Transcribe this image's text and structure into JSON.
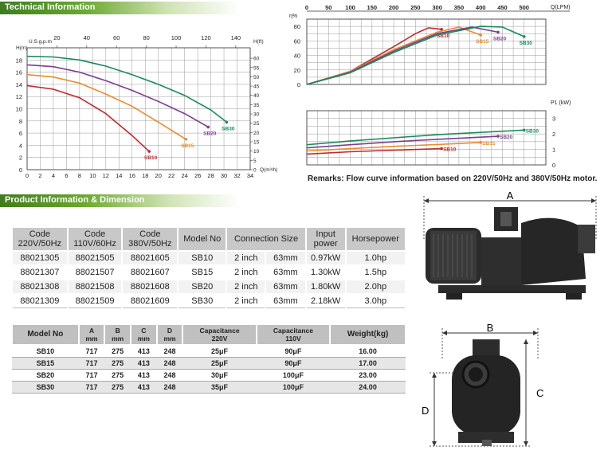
{
  "banners": {
    "technical": "Technical Information",
    "product": "Product Information & Dimension"
  },
  "remarks": "Remarks: Flow curve information based on 220V/50Hz and 380V/50Hz motor.",
  "chart_data": [
    {
      "type": "line",
      "title": "",
      "xlabel": "Q(m³/h)",
      "ylabel": "H(m)",
      "secondary_ylabel": "H(ft)",
      "secondary_xlabel": "U.S.g.p.m",
      "xlim": [
        0,
        34
      ],
      "ylim": [
        0,
        20
      ],
      "x_ticks": [
        "0",
        "2",
        "4",
        "6",
        "8",
        "10",
        "12",
        "14",
        "16",
        "18",
        "20",
        "22",
        "24",
        "26",
        "28",
        "30",
        "32",
        "34"
      ],
      "y_ticks": [
        "0",
        "2",
        "4",
        "6",
        "8",
        "10",
        "12",
        "14",
        "16",
        "18"
      ],
      "secondary_x_ticks": [
        "20",
        "40",
        "60",
        "80",
        "100",
        "120",
        "140"
      ],
      "secondary_y_ticks": [
        "0",
        "5",
        "10",
        "15",
        "20",
        "25",
        "30",
        "35",
        "40",
        "45",
        "50",
        "55",
        "60"
      ],
      "grid": true,
      "series": [
        {
          "name": "SB10",
          "color": "#c0282d",
          "points": [
            [
              0,
              13.8
            ],
            [
              4,
              13.2
            ],
            [
              8,
              11.8
            ],
            [
              12,
              9.2
            ],
            [
              16,
              5.6
            ],
            [
              18.6,
              3.0
            ]
          ]
        },
        {
          "name": "SB15",
          "color": "#e88c2c",
          "points": [
            [
              0,
              15.6
            ],
            [
              4,
              15.2
            ],
            [
              8,
              14.2
            ],
            [
              12,
              12.4
            ],
            [
              16,
              10.4
            ],
            [
              20,
              7.8
            ],
            [
              24.2,
              5.0
            ]
          ]
        },
        {
          "name": "SB20",
          "color": "#7a3f8f",
          "points": [
            [
              0,
              17.2
            ],
            [
              4,
              16.9
            ],
            [
              8,
              16.0
            ],
            [
              12,
              14.6
            ],
            [
              16,
              13.0
            ],
            [
              20,
              11.2
            ],
            [
              24,
              9.2
            ],
            [
              27.6,
              7.0
            ]
          ]
        },
        {
          "name": "SB30",
          "color": "#1a8a5a",
          "points": [
            [
              0,
              18.6
            ],
            [
              4,
              18.5
            ],
            [
              8,
              18.0
            ],
            [
              12,
              17.0
            ],
            [
              16,
              15.6
            ],
            [
              20,
              14.0
            ],
            [
              24,
              12.2
            ],
            [
              28,
              9.8
            ],
            [
              30.4,
              7.8
            ]
          ]
        }
      ]
    },
    {
      "type": "line",
      "title": "",
      "xlabel": "Q(LPM)",
      "ylabel": "η%",
      "xlim": [
        0,
        550
      ],
      "ylim": [
        0,
        90
      ],
      "x_ticks": [
        "0",
        "50",
        "100",
        "150",
        "200",
        "250",
        "300",
        "350",
        "400",
        "450",
        "500"
      ],
      "y_ticks": [
        "0",
        "20",
        "40",
        "60",
        "80"
      ],
      "grid": true,
      "series": [
        {
          "name": "SB10",
          "color": "#c0282d",
          "points": [
            [
              0,
              0
            ],
            [
              100,
              18
            ],
            [
              200,
              52
            ],
            [
              250,
              70
            ],
            [
              280,
              78
            ],
            [
              310,
              76
            ]
          ]
        },
        {
          "name": "SB15",
          "color": "#e88c2c",
          "points": [
            [
              0,
              0
            ],
            [
              100,
              18
            ],
            [
              200,
              48
            ],
            [
              300,
              72
            ],
            [
              350,
              79
            ],
            [
              400,
              68
            ]
          ]
        },
        {
          "name": "SB20",
          "color": "#7a3f8f",
          "points": [
            [
              0,
              0
            ],
            [
              100,
              17
            ],
            [
              200,
              46
            ],
            [
              300,
              70
            ],
            [
              380,
              79
            ],
            [
              440,
              72
            ]
          ]
        },
        {
          "name": "SB30",
          "color": "#1a8a5a",
          "points": [
            [
              0,
              0
            ],
            [
              100,
              16
            ],
            [
              200,
              44
            ],
            [
              300,
              68
            ],
            [
              400,
              80
            ],
            [
              450,
              79
            ],
            [
              500,
              66
            ]
          ]
        }
      ]
    },
    {
      "type": "line",
      "title": "",
      "xlabel": "",
      "ylabel": "P1 (kW)",
      "xlim": [
        0,
        550
      ],
      "ylim": [
        0,
        3.5
      ],
      "y_ticks": [
        "0",
        "1",
        "2",
        "3"
      ],
      "grid": true,
      "series": [
        {
          "name": "SB10",
          "color": "#c0282d",
          "points": [
            [
              0,
              0.7
            ],
            [
              100,
              0.85
            ],
            [
              200,
              0.95
            ],
            [
              310,
              1.05
            ]
          ]
        },
        {
          "name": "SB15",
          "color": "#e88c2c",
          "points": [
            [
              0,
              0.9
            ],
            [
              100,
              1.05
            ],
            [
              200,
              1.2
            ],
            [
              300,
              1.32
            ],
            [
              400,
              1.45
            ]
          ]
        },
        {
          "name": "SB20",
          "color": "#7a3f8f",
          "points": [
            [
              0,
              1.1
            ],
            [
              100,
              1.3
            ],
            [
              200,
              1.5
            ],
            [
              300,
              1.65
            ],
            [
              440,
              1.85
            ]
          ]
        },
        {
          "name": "SB30",
          "color": "#1a8a5a",
          "points": [
            [
              0,
              1.3
            ],
            [
              100,
              1.55
            ],
            [
              200,
              1.75
            ],
            [
              300,
              1.95
            ],
            [
              400,
              2.1
            ],
            [
              500,
              2.25
            ]
          ]
        }
      ]
    }
  ],
  "product_table": {
    "headers": [
      [
        "Code",
        "220V/50Hz"
      ],
      [
        "Code",
        "110V/60Hz"
      ],
      [
        "Code",
        "380V/50Hz"
      ],
      [
        "Model No"
      ],
      [
        "Connection Size"
      ],
      [
        "Input",
        "power"
      ],
      [
        "Horsepower"
      ]
    ],
    "rows": [
      [
        "88021305",
        "88021505",
        "88021605",
        "SB10",
        "2 inch",
        "63mm",
        "0.97kW",
        "1.0hp"
      ],
      [
        "88021307",
        "88021507",
        "88021607",
        "SB15",
        "2 inch",
        "63mm",
        "1.30kW",
        "1.5hp"
      ],
      [
        "88021308",
        "88021508",
        "88021608",
        "SB20",
        "2 inch",
        "63mm",
        "1.80kW",
        "2.0hp"
      ],
      [
        "88021309",
        "88021509",
        "88021609",
        "SB30",
        "2 inch",
        "63mm",
        "2.18kW",
        "3.0hp"
      ]
    ]
  },
  "dimension_table": {
    "headers": [
      [
        "Model No"
      ],
      [
        "A",
        "mm"
      ],
      [
        "B",
        "mm"
      ],
      [
        "C",
        "mm"
      ],
      [
        "D",
        "mm"
      ],
      [
        "Capacitance",
        "220V"
      ],
      [
        "Capacitance",
        "110V"
      ],
      [
        "Weight(kg)"
      ]
    ],
    "rows": [
      [
        "SB10",
        "717",
        "275",
        "413",
        "248",
        "25μF",
        "90μF",
        "16.00"
      ],
      [
        "SB15",
        "717",
        "275",
        "413",
        "248",
        "25μF",
        "90μF",
        "17.00"
      ],
      [
        "SB20",
        "717",
        "275",
        "413",
        "248",
        "30μF",
        "100μF",
        "23.00"
      ],
      [
        "SB30",
        "717",
        "275",
        "413",
        "248",
        "35μF",
        "100μF",
        "24.00"
      ]
    ]
  },
  "dimension_labels": {
    "a": "A",
    "b": "B",
    "c": "C",
    "d": "D"
  }
}
